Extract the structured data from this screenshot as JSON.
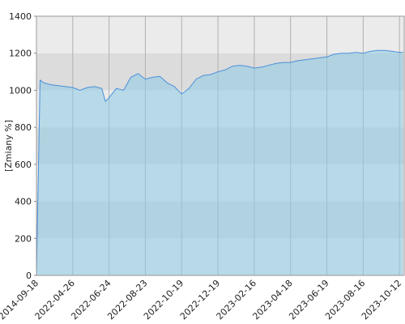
{
  "chart_data": {
    "type": "area",
    "y_label": "[Zmiany %]",
    "x": [
      0,
      1,
      2,
      4,
      6,
      8,
      10,
      12,
      14,
      16,
      18,
      19,
      20,
      22,
      24,
      26,
      28,
      30,
      32,
      34,
      36,
      38,
      40,
      42,
      44,
      46,
      48,
      50,
      52,
      54,
      56,
      58,
      60,
      62,
      64,
      66,
      68,
      70,
      72,
      74,
      76,
      78,
      80,
      82,
      84,
      86,
      88,
      90,
      92,
      94,
      96,
      98,
      100,
      101
    ],
    "series": [
      {
        "color": "#4a90d9",
        "fill": "#8ccbe6",
        "values": [
          0,
          1055,
          1040,
          1030,
          1025,
          1020,
          1015,
          1000,
          1015,
          1020,
          1010,
          940,
          960,
          1010,
          1000,
          1070,
          1090,
          1060,
          1070,
          1075,
          1040,
          1020,
          980,
          1010,
          1060,
          1080,
          1085,
          1100,
          1110,
          1130,
          1135,
          1130,
          1120,
          1125,
          1135,
          1145,
          1150,
          1150,
          1160,
          1165,
          1170,
          1175,
          1180,
          1195,
          1200,
          1200,
          1205,
          1200,
          1210,
          1215,
          1215,
          1210,
          1205,
          1205
        ]
      }
    ],
    "xlim": [
      0,
      101.3
    ],
    "xticks": [
      {
        "value": 0,
        "label": "2014-09-18"
      },
      {
        "value": 10,
        "label": "2022-04-26"
      },
      {
        "value": 20,
        "label": "2022-06-24"
      },
      {
        "value": 30,
        "label": "2022-08-23"
      },
      {
        "value": 40,
        "label": "2022-10-19"
      },
      {
        "value": 50,
        "label": "2022-12-19"
      },
      {
        "value": 60,
        "label": "2023-02-16"
      },
      {
        "value": 70,
        "label": "2023-04-18"
      },
      {
        "value": 80,
        "label": "2023-06-19"
      },
      {
        "value": 90,
        "label": "2023-08-16"
      },
      {
        "value": 100,
        "label": "2023-10-12"
      }
    ],
    "ylim": [
      0,
      1400
    ],
    "yticks": [
      0,
      200,
      400,
      600,
      800,
      1000,
      1200,
      1400
    ],
    "grid": true
  }
}
